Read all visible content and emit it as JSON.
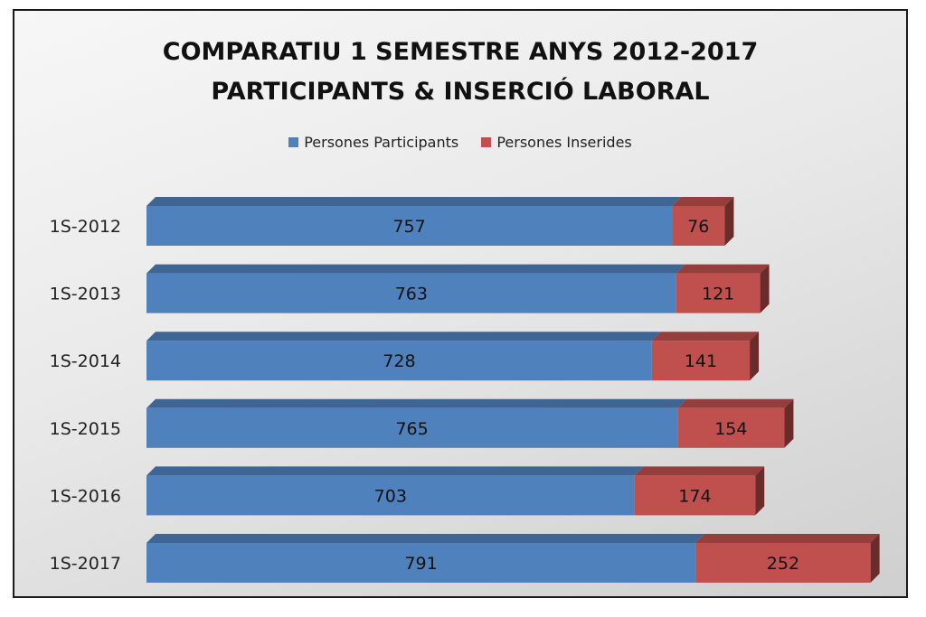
{
  "chart_data": {
    "type": "bar",
    "orientation": "horizontal",
    "stacked": true,
    "title": "COMPARATIU 1 SEMESTRE ANYS 2012-2017",
    "subtitle": "PARTICIPANTS & INSERCIÓ LABORAL",
    "categories": [
      "1S-2012",
      "1S-2013",
      "1S-2014",
      "1S-2015",
      "1S-2016",
      "1S-2017"
    ],
    "series": [
      {
        "name": "Persones Participants",
        "color": "#4f81bd",
        "values": [
          757,
          763,
          728,
          765,
          703,
          791
        ]
      },
      {
        "name": "Persones Inserides",
        "color": "#c0504d",
        "values": [
          76,
          121,
          141,
          154,
          174,
          252
        ]
      }
    ],
    "legend_position": "top",
    "grid": false,
    "data_labels": true,
    "xlim": [
      0,
      1050
    ]
  }
}
